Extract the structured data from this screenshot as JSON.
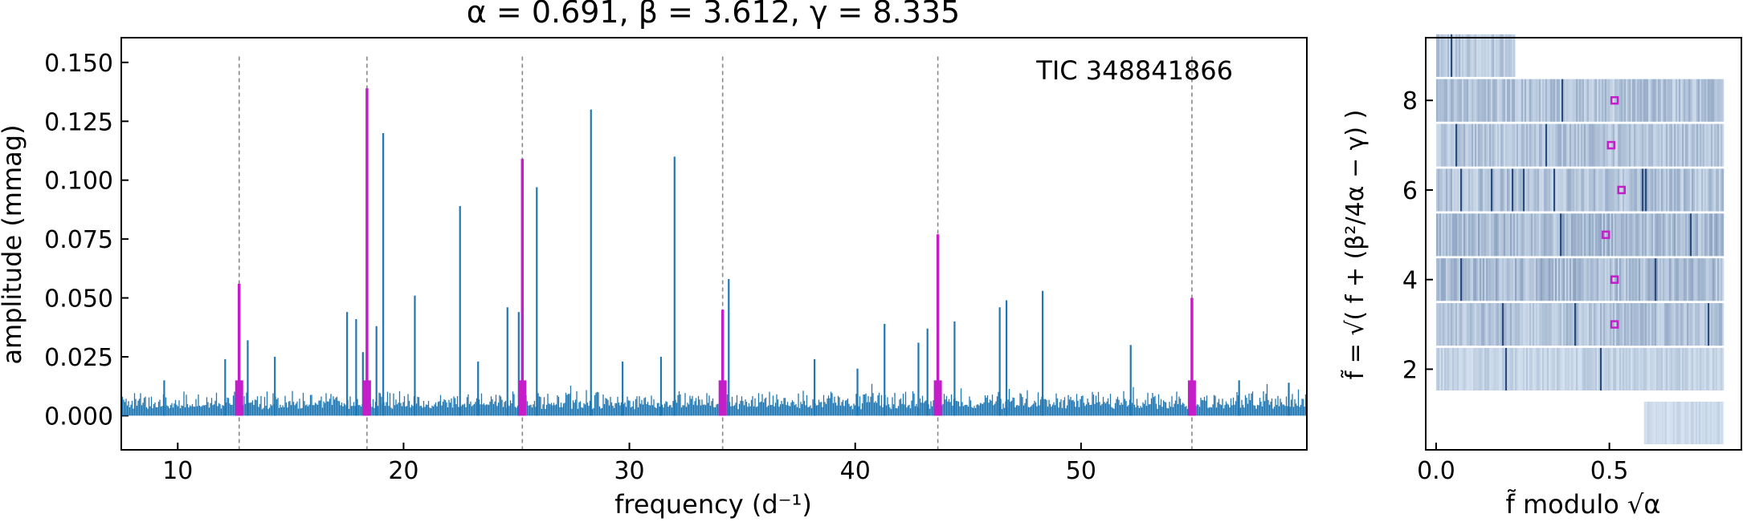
{
  "colors": {
    "spectrum": "#1f77b4",
    "highlight": "#c41ec9",
    "gridline": "#888888",
    "echelle_base": "#e3eef9",
    "echelle_dark": "#08306b",
    "marker": "#c41ec9"
  },
  "chart_data": [
    {
      "type": "line",
      "title": "α = 0.691, β = 3.612, γ = 8.335",
      "xlabel": "frequency (d⁻¹)",
      "ylabel": "amplitude (mmag)",
      "annotation": "TIC 348841866",
      "xlim": [
        7.5,
        60
      ],
      "ylim": [
        -0.0145,
        0.1605
      ],
      "xticks": [
        10,
        20,
        30,
        40,
        50
      ],
      "yticks": [
        0.0,
        0.025,
        0.05,
        0.075,
        0.1,
        0.125,
        0.15
      ],
      "ytick_labels": [
        "0.000",
        "0.025",
        "0.050",
        "0.075",
        "0.100",
        "0.125",
        "0.150"
      ],
      "noise_level": 0.0045,
      "peaks": [
        {
          "x": 9.4,
          "y": 0.015
        },
        {
          "x": 12.1,
          "y": 0.024
        },
        {
          "x": 13.1,
          "y": 0.032
        },
        {
          "x": 14.3,
          "y": 0.025
        },
        {
          "x": 17.5,
          "y": 0.044
        },
        {
          "x": 17.9,
          "y": 0.041
        },
        {
          "x": 18.2,
          "y": 0.027
        },
        {
          "x": 18.8,
          "y": 0.038
        },
        {
          "x": 19.1,
          "y": 0.12
        },
        {
          "x": 20.5,
          "y": 0.051
        },
        {
          "x": 22.5,
          "y": 0.089
        },
        {
          "x": 23.3,
          "y": 0.023
        },
        {
          "x": 24.6,
          "y": 0.046
        },
        {
          "x": 25.1,
          "y": 0.044
        },
        {
          "x": 25.9,
          "y": 0.097
        },
        {
          "x": 28.3,
          "y": 0.13
        },
        {
          "x": 29.7,
          "y": 0.023
        },
        {
          "x": 31.4,
          "y": 0.025
        },
        {
          "x": 32.0,
          "y": 0.11
        },
        {
          "x": 34.4,
          "y": 0.058
        },
        {
          "x": 38.2,
          "y": 0.024
        },
        {
          "x": 40.1,
          "y": 0.02
        },
        {
          "x": 41.3,
          "y": 0.039
        },
        {
          "x": 42.8,
          "y": 0.031
        },
        {
          "x": 43.2,
          "y": 0.037
        },
        {
          "x": 44.4,
          "y": 0.04
        },
        {
          "x": 46.4,
          "y": 0.046
        },
        {
          "x": 46.7,
          "y": 0.049
        },
        {
          "x": 48.3,
          "y": 0.053
        },
        {
          "x": 52.2,
          "y": 0.03
        },
        {
          "x": 57.0,
          "y": 0.015
        },
        {
          "x": 59.2,
          "y": 0.014
        }
      ],
      "highlighted_peaks": [
        {
          "x": 12.72,
          "y": 0.056
        },
        {
          "x": 18.38,
          "y": 0.139
        },
        {
          "x": 25.26,
          "y": 0.109
        },
        {
          "x": 34.13,
          "y": 0.045
        },
        {
          "x": 43.66,
          "y": 0.077
        },
        {
          "x": 54.91,
          "y": 0.05
        }
      ],
      "guide_lines_x": [
        12.72,
        18.38,
        25.26,
        34.13,
        43.66,
        54.91
      ]
    },
    {
      "type": "heatmap",
      "xlabel": "f̃ modulo √α",
      "ylabel": "f̃ = √( f + (β²/4α − γ) )",
      "xlim": [
        -0.03,
        0.881
      ],
      "ylim": [
        0.2,
        9.4
      ],
      "xticks": [
        0.0,
        0.5
      ],
      "xtick_labels": [
        "0.0",
        "0.5"
      ],
      "yticks": [
        2,
        4,
        6,
        8
      ],
      "row_width": 0.831,
      "rows": [
        {
          "center": 0.8,
          "start": 0.6,
          "end": 0.831,
          "level": 0.15
        },
        {
          "center": 2.0,
          "start": 0.0,
          "end": 0.831,
          "level": 0.2
        },
        {
          "center": 3.0,
          "start": 0.0,
          "end": 0.831,
          "level": 0.32
        },
        {
          "center": 4.0,
          "start": 0.0,
          "end": 0.831,
          "level": 0.38
        },
        {
          "center": 5.0,
          "start": 0.0,
          "end": 0.831,
          "level": 0.38
        },
        {
          "center": 6.0,
          "start": 0.0,
          "end": 0.831,
          "level": 0.33
        },
        {
          "center": 7.0,
          "start": 0.0,
          "end": 0.831,
          "level": 0.32
        },
        {
          "center": 8.0,
          "start": 0.0,
          "end": 0.831,
          "level": 0.32
        },
        {
          "center": 9.0,
          "start": 0.0,
          "end": 0.23,
          "level": 0.28
        }
      ],
      "markers": [
        {
          "x": 0.515,
          "y": 3.0
        },
        {
          "x": 0.515,
          "y": 4.0
        },
        {
          "x": 0.49,
          "y": 5.0
        },
        {
          "x": 0.535,
          "y": 6.0
        },
        {
          "x": 0.505,
          "y": 7.0
        },
        {
          "x": 0.515,
          "y": 8.0
        }
      ]
    }
  ]
}
